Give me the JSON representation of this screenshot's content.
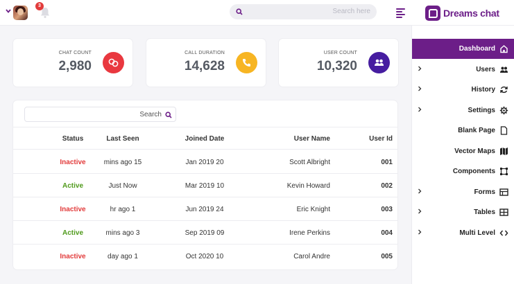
{
  "header": {
    "notification_count": "3",
    "search_placeholder": "Search here"
  },
  "brand": {
    "name": "Dreams chat",
    "accent": "#6c1e88"
  },
  "stats": [
    {
      "label": "CHAT COUNT",
      "value": "2,980",
      "icon": "chat-bubbles-icon",
      "color": "#e9383f"
    },
    {
      "label": "CALL DURATION",
      "value": "14,628",
      "icon": "phone-icon",
      "color": "#f7b523"
    },
    {
      "label": "USER COUNT",
      "value": "10,320",
      "icon": "users-icon",
      "color": "#461da0"
    }
  ],
  "table": {
    "search_placeholder": "Search",
    "columns": [
      "Status",
      "Last Seen",
      "Joined Date",
      "User Name",
      "User Id"
    ],
    "rows": [
      {
        "status": "Inactive",
        "last_seen": "mins ago 15",
        "joined": "Jan 2019 20",
        "name": "Scott Albright",
        "id": "001"
      },
      {
        "status": "Active",
        "last_seen": "Just Now",
        "joined": "Mar 2019 10",
        "name": "Kevin Howard",
        "id": "002"
      },
      {
        "status": "Inactive",
        "last_seen": "hr ago 1",
        "joined": "Jun 2019 24",
        "name": "Eric Knight",
        "id": "003"
      },
      {
        "status": "Active",
        "last_seen": "mins ago 3",
        "joined": "Sep 2019 09",
        "name": "Irene Perkins",
        "id": "004"
      },
      {
        "status": "Inactive",
        "last_seen": "day ago 1",
        "joined": "Oct 2020 10",
        "name": "Carol Andre",
        "id": "005"
      }
    ]
  },
  "sidebar": {
    "items": [
      {
        "label": "Dashboard",
        "icon": "home-icon",
        "active": true,
        "has_children": false
      },
      {
        "label": "Users",
        "icon": "users-icon",
        "active": false,
        "has_children": true
      },
      {
        "label": "History",
        "icon": "refresh-icon",
        "active": false,
        "has_children": true
      },
      {
        "label": "Settings",
        "icon": "gear-icon",
        "active": false,
        "has_children": true
      },
      {
        "label": "Blank Page",
        "icon": "file-icon",
        "active": false,
        "has_children": false
      },
      {
        "label": "Vector Maps",
        "icon": "map-icon",
        "active": false,
        "has_children": false
      },
      {
        "label": "Components",
        "icon": "vector-square-icon",
        "active": false,
        "has_children": false
      },
      {
        "label": "Forms",
        "icon": "form-icon",
        "active": false,
        "has_children": true
      },
      {
        "label": "Tables",
        "icon": "table-icon",
        "active": false,
        "has_children": true
      },
      {
        "label": "Multi Level",
        "icon": "code-icon",
        "active": false,
        "has_children": true
      }
    ]
  }
}
